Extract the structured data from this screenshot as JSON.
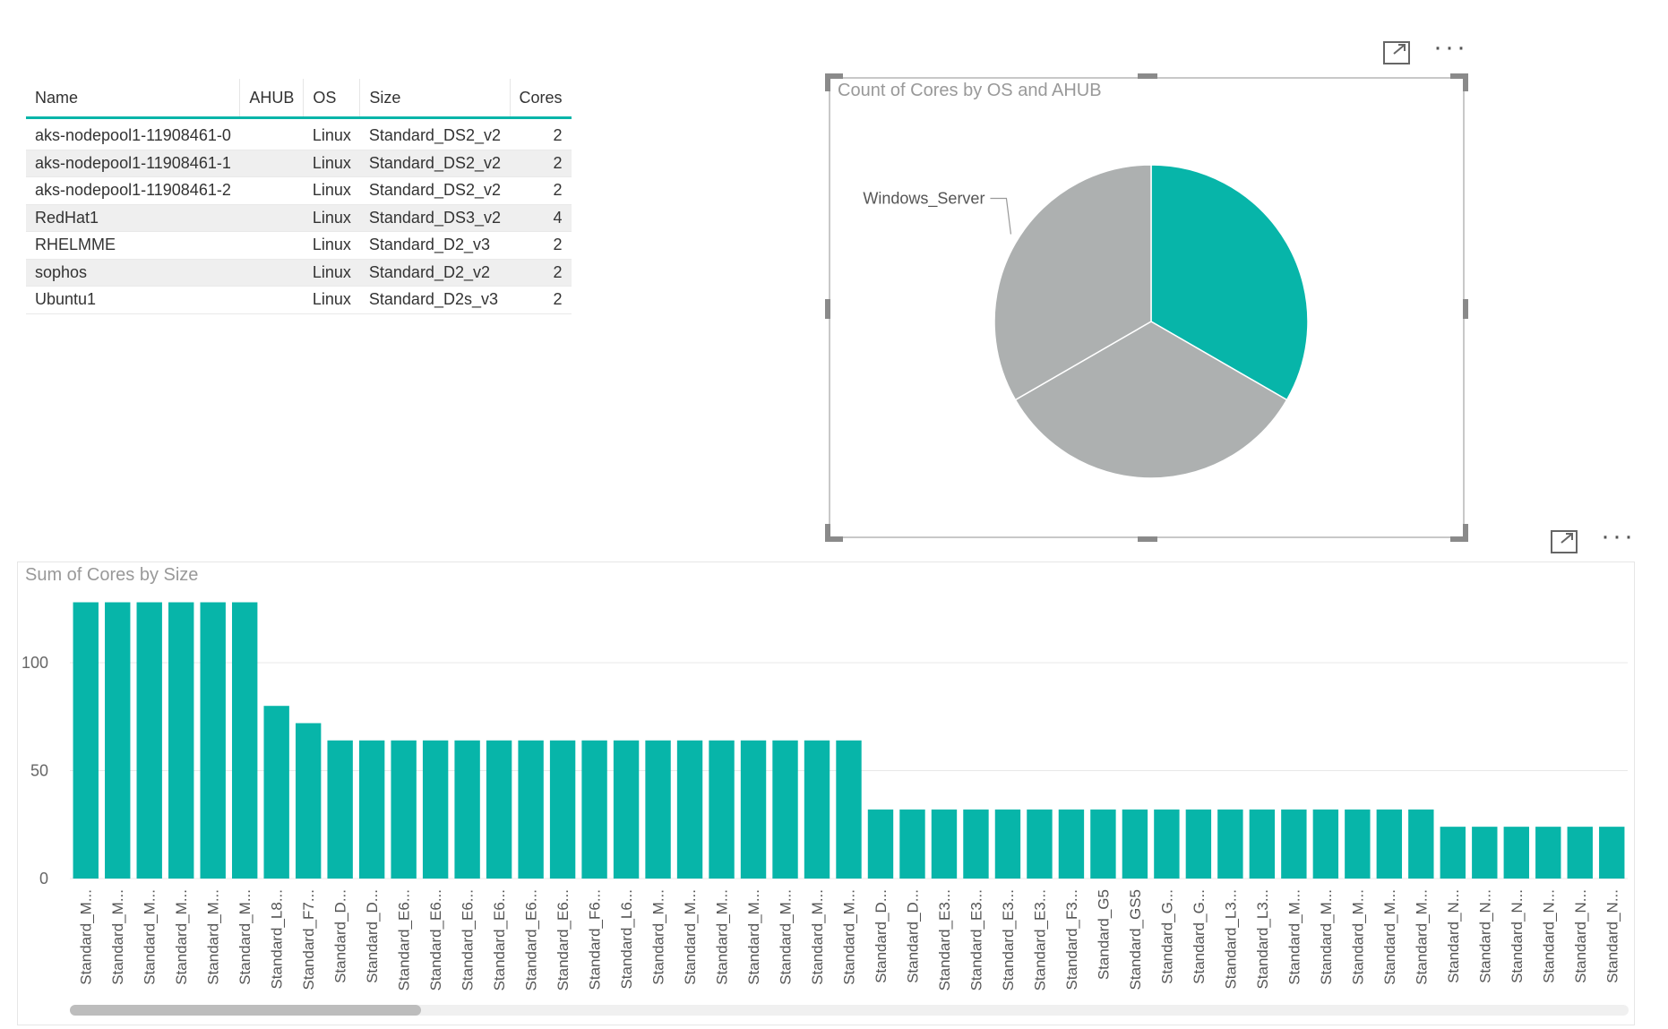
{
  "table": {
    "columns": [
      "Name",
      "AHUB",
      "OS",
      "Size",
      "Cores"
    ],
    "rows": [
      [
        "aks-nodepool1-11908461-0",
        "",
        "Linux",
        "Standard_DS2_v2",
        "2"
      ],
      [
        "aks-nodepool1-11908461-1",
        "",
        "Linux",
        "Standard_DS2_v2",
        "2"
      ],
      [
        "aks-nodepool1-11908461-2",
        "",
        "Linux",
        "Standard_DS2_v2",
        "2"
      ],
      [
        "RedHat1",
        "",
        "Linux",
        "Standard_DS3_v2",
        "4"
      ],
      [
        "RHELMME",
        "",
        "Linux",
        "Standard_D2_v3",
        "2"
      ],
      [
        "sophos",
        "",
        "Linux",
        "Standard_D2_v2",
        "2"
      ],
      [
        "Ubuntu1",
        "",
        "Linux",
        "Standard_D2s_v3",
        "2"
      ]
    ]
  },
  "icons": {
    "focus": "focus-mode-icon",
    "more": "more-options-icon",
    "more_glyph": "···"
  },
  "chart_data": [
    {
      "type": "pie",
      "title": "Count of Cores by OS and AHUB",
      "slices": [
        {
          "label": "",
          "value": 1,
          "color": "#07b5a9"
        },
        {
          "label": "",
          "value": 1,
          "color": "#adb0b0"
        },
        {
          "label": "Windows_Server",
          "value": 1,
          "color": "#adb0b0"
        }
      ],
      "visible_labels": [
        "Windows_Server"
      ]
    },
    {
      "type": "bar",
      "title": "Sum of Cores by Size",
      "xlabel": "",
      "ylabel": "",
      "ylim": [
        0,
        132
      ],
      "yticks": [
        0,
        50,
        100
      ],
      "grid": true,
      "color": "#07b5a9",
      "categories": [
        "Standard_M...",
        "Standard_M...",
        "Standard_M...",
        "Standard_M...",
        "Standard_M...",
        "Standard_M...",
        "Standard_L8...",
        "Standard_F7...",
        "Standard_D...",
        "Standard_D...",
        "Standard_E6...",
        "Standard_E6...",
        "Standard_E6...",
        "Standard_E6...",
        "Standard_E6...",
        "Standard_E6...",
        "Standard_F6...",
        "Standard_L6...",
        "Standard_M...",
        "Standard_M...",
        "Standard_M...",
        "Standard_M...",
        "Standard_M...",
        "Standard_M...",
        "Standard_M...",
        "Standard_D...",
        "Standard_D...",
        "Standard_E3...",
        "Standard_E3...",
        "Standard_E3...",
        "Standard_E3...",
        "Standard_F3...",
        "Standard_G5",
        "Standard_GS5",
        "Standard_G...",
        "Standard_G...",
        "Standard_L3...",
        "Standard_L3...",
        "Standard_M...",
        "Standard_M...",
        "Standard_M...",
        "Standard_M...",
        "Standard_M...",
        "Standard_N...",
        "Standard_N...",
        "Standard_N...",
        "Standard_N...",
        "Standard_N...",
        "Standard_N..."
      ],
      "values": [
        128,
        128,
        128,
        128,
        128,
        128,
        80,
        72,
        64,
        64,
        64,
        64,
        64,
        64,
        64,
        64,
        64,
        64,
        64,
        64,
        64,
        64,
        64,
        64,
        64,
        32,
        32,
        32,
        32,
        32,
        32,
        32,
        32,
        32,
        32,
        32,
        32,
        32,
        32,
        32,
        32,
        32,
        32,
        24,
        24,
        24,
        24,
        24,
        24
      ]
    }
  ]
}
